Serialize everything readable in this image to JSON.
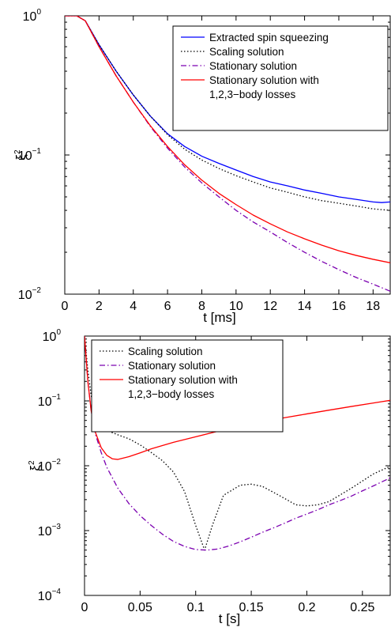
{
  "chart_data": [
    {
      "type": "line",
      "xlabel": "t [ms]",
      "ylabel": "ξ",
      "ylabel_sup": "2",
      "xlim": [
        0,
        19
      ],
      "ylim": [
        0.01,
        1
      ],
      "yscale": "log",
      "x_ticks": [
        "0",
        "2",
        "4",
        "6",
        "8",
        "10",
        "12",
        "14",
        "16",
        "18"
      ],
      "y_ticks": [
        {
          "base": "10",
          "exp": "0"
        },
        {
          "base": "10",
          "exp": "−1"
        },
        {
          "base": "10",
          "exp": "−2"
        }
      ],
      "legend_position": "top-right",
      "legend": [
        {
          "label": "Extracted spin squeezing",
          "color": "#0000ff",
          "dash": "solid"
        },
        {
          "label": "Scaling solution",
          "color": "#000000",
          "dash": "dotted"
        },
        {
          "label": "Stationary solution",
          "color": "#7b00b0",
          "dash": "dashdot"
        },
        {
          "label": "Stationary solution with",
          "label2": "1,2,3−body losses",
          "color": "#ff0000",
          "dash": "solid"
        }
      ],
      "series": [
        {
          "name": "Extracted spin squeezing",
          "color": "#0000ff",
          "dash": "solid",
          "x": [
            0,
            0.7,
            1.2,
            2,
            3,
            4,
            5,
            6,
            7,
            8,
            9,
            10,
            11,
            12,
            13,
            14,
            15,
            16,
            17,
            18,
            18.5,
            19
          ],
          "y": [
            1,
            1,
            0.92,
            0.62,
            0.4,
            0.27,
            0.19,
            0.142,
            0.115,
            0.098,
            0.087,
            0.078,
            0.07,
            0.064,
            0.06,
            0.056,
            0.053,
            0.05,
            0.048,
            0.046,
            0.0455,
            0.046
          ]
        },
        {
          "name": "Scaling solution",
          "color": "#000000",
          "dash": "dotted",
          "x": [
            0,
            0.7,
            1.2,
            2,
            3,
            4,
            5,
            6,
            7,
            8,
            9,
            10,
            11,
            12,
            13,
            14,
            15,
            16,
            17,
            18,
            19
          ],
          "y": [
            1,
            1,
            0.92,
            0.62,
            0.4,
            0.27,
            0.19,
            0.14,
            0.11,
            0.092,
            0.08,
            0.071,
            0.064,
            0.058,
            0.054,
            0.05,
            0.047,
            0.045,
            0.043,
            0.041,
            0.04
          ]
        },
        {
          "name": "Stationary solution",
          "color": "#7b00b0",
          "dash": "dashdot",
          "x": [
            0,
            0.7,
            1.2,
            2,
            3,
            4,
            5,
            6,
            7,
            8,
            9,
            10,
            11,
            12,
            13,
            14,
            15,
            16,
            17,
            18,
            19
          ],
          "y": [
            1,
            1,
            0.92,
            0.6,
            0.37,
            0.24,
            0.16,
            0.112,
            0.082,
            0.063,
            0.05,
            0.04,
            0.033,
            0.028,
            0.0235,
            0.02,
            0.0172,
            0.015,
            0.0132,
            0.0118,
            0.0105
          ]
        },
        {
          "name": "Stationary solution with 1,2,3−body losses",
          "color": "#ff0000",
          "dash": "solid",
          "x": [
            0,
            0.7,
            1.2,
            2,
            3,
            4,
            5,
            6,
            7,
            8,
            9,
            10,
            11,
            12,
            13,
            14,
            15,
            16,
            17,
            18,
            19
          ],
          "y": [
            1,
            1,
            0.92,
            0.6,
            0.37,
            0.24,
            0.162,
            0.115,
            0.085,
            0.066,
            0.053,
            0.044,
            0.037,
            0.032,
            0.028,
            0.025,
            0.0225,
            0.0205,
            0.019,
            0.0178,
            0.0168
          ]
        }
      ]
    },
    {
      "type": "line",
      "xlabel": "t [s]",
      "ylabel": "ξ",
      "ylabel_sup": "2",
      "xlim": [
        0,
        0.275
      ],
      "ylim": [
        0.0001,
        1
      ],
      "yscale": "log",
      "x_ticks": [
        "0",
        "0.05",
        "0.1",
        "0.15",
        "0.2",
        "0.25"
      ],
      "y_ticks": [
        {
          "base": "10",
          "exp": "0"
        },
        {
          "base": "10",
          "exp": "−1"
        },
        {
          "base": "10",
          "exp": "−2"
        },
        {
          "base": "10",
          "exp": "−3"
        },
        {
          "base": "10",
          "exp": "−4"
        }
      ],
      "legend_position": "top-left",
      "legend": [
        {
          "label": "Scaling solution",
          "color": "#000000",
          "dash": "dotted"
        },
        {
          "label": "Stationary solution",
          "color": "#7b00b0",
          "dash": "dashdot"
        },
        {
          "label": "Stationary solution with",
          "label2": "1,2,3−body losses",
          "color": "#ff0000",
          "dash": "solid"
        }
      ],
      "series": [
        {
          "name": "Scaling solution",
          "color": "#000000",
          "dash": "dotted",
          "x": [
            0,
            0.003,
            0.006,
            0.01,
            0.015,
            0.02,
            0.03,
            0.04,
            0.05,
            0.06,
            0.07,
            0.08,
            0.09,
            0.1,
            0.108,
            0.115,
            0.125,
            0.14,
            0.15,
            0.16,
            0.175,
            0.19,
            0.2,
            0.21,
            0.22,
            0.24,
            0.26,
            0.275
          ],
          "y": [
            1,
            0.3,
            0.12,
            0.06,
            0.042,
            0.035,
            0.03,
            0.026,
            0.021,
            0.016,
            0.012,
            0.008,
            0.004,
            0.0012,
            0.0005,
            0.0012,
            0.0035,
            0.005,
            0.0052,
            0.0048,
            0.0035,
            0.0025,
            0.0024,
            0.0025,
            0.0028,
            0.0045,
            0.0075,
            0.0098
          ]
        },
        {
          "name": "Stationary solution",
          "color": "#7b00b0",
          "dash": "dashdot",
          "x": [
            0,
            0.003,
            0.006,
            0.01,
            0.015,
            0.02,
            0.03,
            0.04,
            0.05,
            0.06,
            0.07,
            0.08,
            0.09,
            0.1,
            0.11,
            0.12,
            0.13,
            0.14,
            0.15,
            0.16,
            0.17,
            0.18,
            0.19,
            0.2,
            0.21,
            0.22,
            0.23,
            0.24,
            0.25,
            0.26,
            0.275
          ],
          "y": [
            1,
            0.2,
            0.07,
            0.03,
            0.016,
            0.0095,
            0.0045,
            0.0026,
            0.0017,
            0.0012,
            0.00088,
            0.00068,
            0.00057,
            0.00051,
            0.0005,
            0.00052,
            0.00058,
            0.00067,
            0.00079,
            0.00094,
            0.0011,
            0.0013,
            0.00155,
            0.0018,
            0.0021,
            0.0025,
            0.0029,
            0.0034,
            0.0041,
            0.0049,
            0.0065
          ]
        },
        {
          "name": "Stationary solution with 1,2,3−body losses",
          "color": "#ff0000",
          "dash": "solid",
          "x": [
            0,
            0.003,
            0.006,
            0.01,
            0.015,
            0.02,
            0.025,
            0.03,
            0.04,
            0.05,
            0.06,
            0.08,
            0.1,
            0.12,
            0.14,
            0.16,
            0.18,
            0.2,
            0.22,
            0.24,
            0.26,
            0.275
          ],
          "y": [
            1,
            0.2,
            0.07,
            0.032,
            0.019,
            0.0145,
            0.0128,
            0.0125,
            0.0138,
            0.0158,
            0.0182,
            0.023,
            0.028,
            0.034,
            0.04,
            0.047,
            0.055,
            0.063,
            0.072,
            0.082,
            0.093,
            0.102
          ]
        }
      ]
    }
  ]
}
